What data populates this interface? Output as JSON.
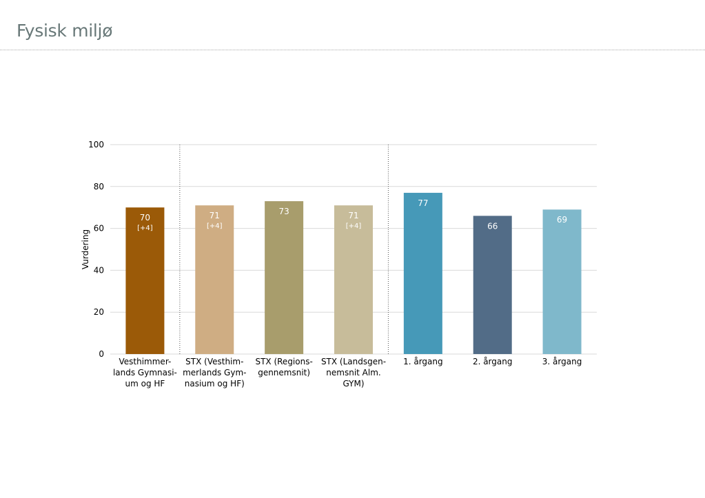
{
  "page": {
    "title": "Fysisk miljø"
  },
  "chart_data": {
    "type": "bar",
    "title": "",
    "xlabel": "",
    "ylabel": "Vurdering",
    "ylim": [
      0,
      100
    ],
    "yticks": [
      0,
      20,
      40,
      60,
      80,
      100
    ],
    "grid": true,
    "categories": [
      [
        "Vesthimmer-",
        "lands Gymnasi-",
        "um og HF"
      ],
      [
        "STX (Vesthim-",
        "merlands Gym-",
        "nasium og HF)"
      ],
      [
        "STX (Regions-",
        "gennemsnit)"
      ],
      [
        "STX (Landsgen-",
        "nemsnit Alm.",
        "GYM)"
      ],
      [
        "1. årgang"
      ],
      [
        "2. årgang"
      ],
      [
        "3. årgang"
      ]
    ],
    "values": [
      70,
      71,
      73,
      71,
      77,
      66,
      69
    ],
    "value_labels": [
      "70",
      "71",
      "73",
      "71",
      "77",
      "66",
      "69"
    ],
    "change_labels": [
      "[+4]",
      "[+4]",
      "",
      "[+4]",
      "",
      "",
      ""
    ],
    "colors": [
      "#9b5a08",
      "#cfad83",
      "#a89d6c",
      "#c7bc9a",
      "#4699b8",
      "#526c87",
      "#7fb8cb"
    ],
    "group_separators_after": [
      0,
      3
    ]
  }
}
